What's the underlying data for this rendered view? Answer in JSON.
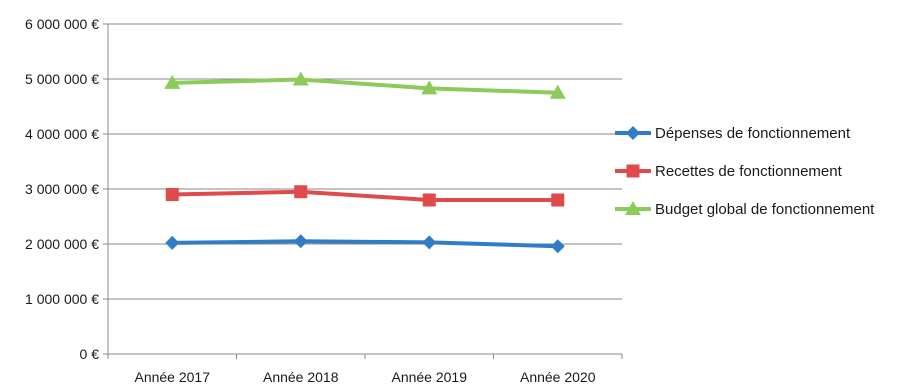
{
  "chart_data": {
    "type": "line",
    "title": "",
    "xlabel": "",
    "ylabel": "",
    "categories": [
      "Année 2017",
      "Année 2018",
      "Année 2019",
      "Année 2020"
    ],
    "y_ticks": [
      {
        "value": 0,
        "label": "0 €"
      },
      {
        "value": 1000000,
        "label": "1 000 000 €"
      },
      {
        "value": 2000000,
        "label": "2 000 000 €"
      },
      {
        "value": 3000000,
        "label": "3 000 000 €"
      },
      {
        "value": 4000000,
        "label": "4 000 000 €"
      },
      {
        "value": 5000000,
        "label": "5 000 000 €"
      },
      {
        "value": 6000000,
        "label": "6 000 000 €"
      }
    ],
    "ylim": [
      0,
      6000000
    ],
    "grid": true,
    "legend_position": "right",
    "series": [
      {
        "name": "Dépenses de fonctionnement",
        "marker": "diamond",
        "color": "#2e7dc6",
        "values": [
          2020000,
          2050000,
          2030000,
          1960000
        ]
      },
      {
        "name": "Recettes de fonctionnement",
        "marker": "square",
        "color": "#e04a4a",
        "values": [
          2900000,
          2950000,
          2800000,
          2800000
        ]
      },
      {
        "name": "Budget global de fonctionnement",
        "marker": "triangle",
        "color": "#8ccb5a",
        "values": [
          4930000,
          4990000,
          4830000,
          4750000
        ]
      }
    ]
  }
}
